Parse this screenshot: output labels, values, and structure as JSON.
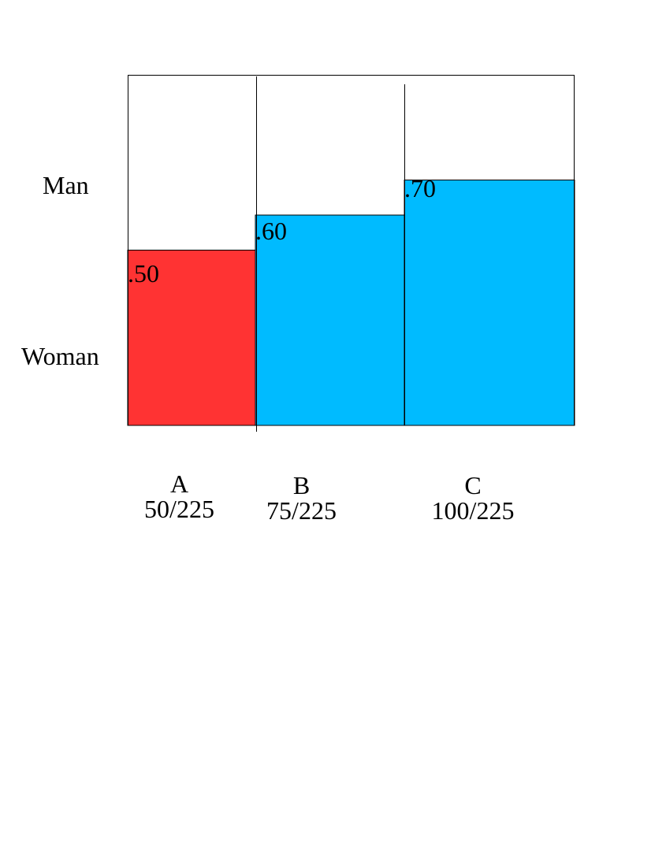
{
  "chart_data": {
    "type": "mosaic",
    "row_labels": [
      "Man",
      "Woman"
    ],
    "categories": [
      "A",
      "B",
      "C"
    ],
    "category_shares": [
      "50/225",
      "75/225",
      "100/225"
    ],
    "woman_proportions": [
      0.5,
      0.6,
      0.7
    ],
    "data_labels": [
      ".50",
      ".60",
      ".70"
    ],
    "colors": [
      "#FF3333",
      "#00BBFF",
      "#00BBFF"
    ]
  }
}
